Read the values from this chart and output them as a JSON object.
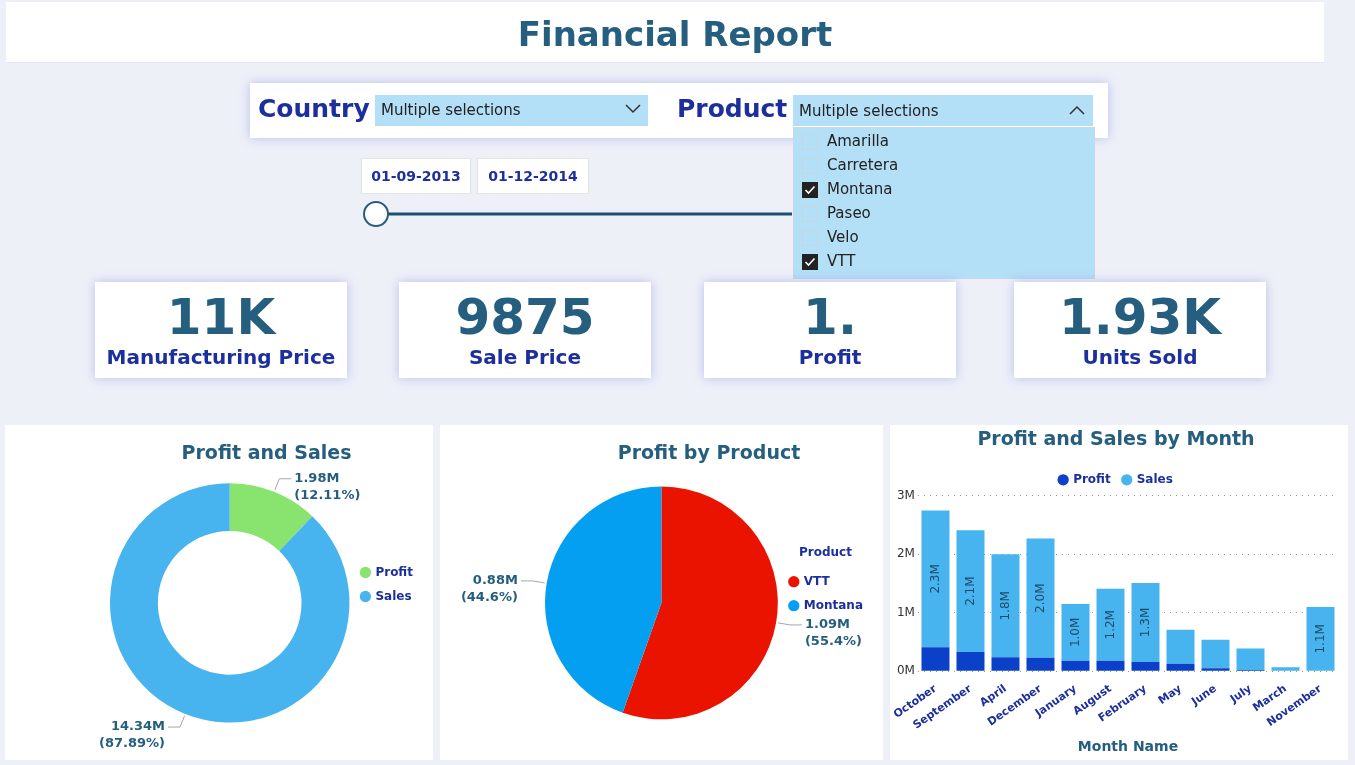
{
  "chart_data": [
    {
      "type": "other",
      "title": "Financial Report",
      "annotations": [
        "Country",
        "Multiple selections",
        "Product",
        "Multiple selections",
        "Amarilla",
        "Carretera",
        "Montana",
        "Paseo",
        "Velo",
        "VTT",
        "01-09-2013",
        "01-12-2014",
        "11K",
        "Manufacturing Price",
        "9875",
        "Sale Price",
        "1.",
        "Profit",
        "1.93K",
        "Units Sold"
      ]
    },
    {
      "type": "donut",
      "title": "Profit and Sales",
      "categories": [
        "Profit",
        "Sales"
      ],
      "values": [
        12.11,
        87.89
      ],
      "colors": [
        "#88e36f",
        "#47b4f0"
      ],
      "value_labels": [
        "1.98M (12.11%)",
        "14.34M (87.89%)"
      ],
      "legend": "right"
    },
    {
      "type": "pie",
      "title": "Profit by Product",
      "categories": [
        "VTT",
        "Montana"
      ],
      "values": [
        55.4,
        44.6
      ],
      "colors": [
        "#ea1300",
        "#049ff0"
      ],
      "value_labels": [
        "1.09M (55.4%)",
        "0.88M (44.6%)"
      ],
      "legend": "right",
      "legend_title": "Product"
    },
    {
      "type": "bar",
      "title": "Profit and Sales by Month",
      "xlabel": "Month Name",
      "stacked": true,
      "legend": "top",
      "grid": "y",
      "categories": [
        "October",
        "September",
        "April",
        "December",
        "January",
        "August",
        "February",
        "May",
        "June",
        "July",
        "March",
        "November"
      ],
      "ylim": [
        0,
        3
      ],
      "yticks": [
        {
          "value": 0,
          "label": "0M"
        },
        {
          "value": 1,
          "label": "1M"
        },
        {
          "value": 2,
          "label": "2M"
        },
        {
          "value": 3,
          "label": "3M"
        }
      ],
      "series": [
        {
          "name": "Profit",
          "color": "#0a41c8",
          "values": [
            0.41,
            0.33,
            0.24,
            0.23,
            0.18,
            0.18,
            0.16,
            0.13,
            0.05,
            0.02,
            0.01,
            0
          ]
        },
        {
          "name": "Sales",
          "color": "#47b4f0",
          "values": [
            2.34,
            2.08,
            1.76,
            2.04,
            0.97,
            1.23,
            1.35,
            0.58,
            0.49,
            0.37,
            0.06,
            1.1
          ],
          "value_labels": [
            "2.3M",
            "2.1M",
            "1.8M",
            "2.0M",
            "1.0M",
            "1.2M",
            "1.3M",
            null,
            null,
            null,
            null,
            "1.1M"
          ]
        }
      ]
    }
  ]
}
